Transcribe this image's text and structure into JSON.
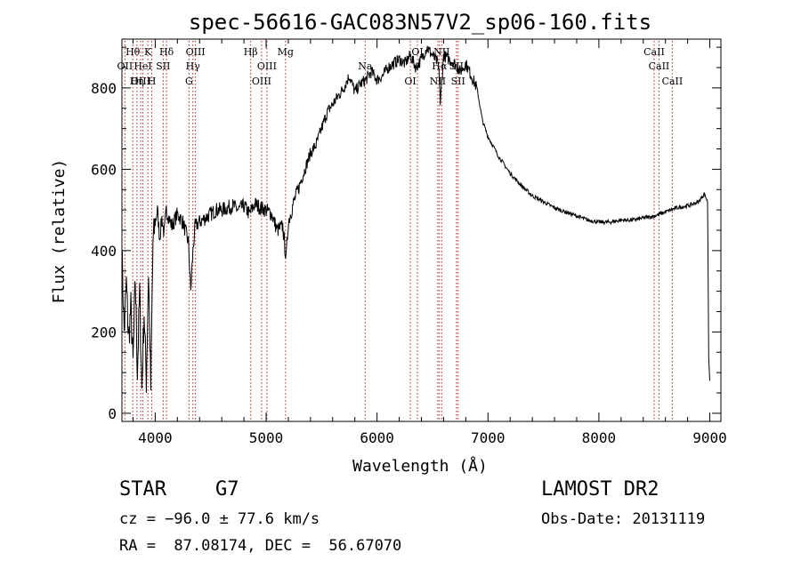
{
  "chart_data": {
    "type": "line",
    "title": "spec-56616-GAC083N57V2_sp06-160.fits",
    "xlabel": "Wavelength (Å)",
    "ylabel": "Flux (relative)",
    "xlim": [
      3700,
      9100
    ],
    "ylim": [
      -20,
      920
    ],
    "xticks": [
      4000,
      5000,
      6000,
      7000,
      8000,
      9000
    ],
    "yticks": [
      0,
      200,
      400,
      600,
      800
    ],
    "grid": false,
    "line_color": "#000000",
    "marker_color": "#b22222",
    "series": [
      {
        "x": [
          3700,
          3720,
          3740,
          3760,
          3780,
          3800,
          3820,
          3840,
          3860,
          3880,
          3900,
          3920,
          3940,
          3960,
          3980,
          4000,
          4020,
          4040,
          4060,
          4080,
          4100,
          4150,
          4200,
          4250,
          4300,
          4320,
          4340,
          4360,
          4400,
          4450,
          4500,
          4550,
          4600,
          4650,
          4700,
          4750,
          4800,
          4850,
          4900,
          4950,
          5000,
          5050,
          5100,
          5150,
          5180,
          5200,
          5250,
          5300,
          5350,
          5400,
          5450,
          5500,
          5550,
          5600,
          5650,
          5700,
          5750,
          5800,
          5850,
          5900,
          5950,
          6000,
          6050,
          6100,
          6150,
          6200,
          6250,
          6300,
          6350,
          6400,
          6450,
          6500,
          6550,
          6563,
          6570,
          6600,
          6650,
          6700,
          6750,
          6800,
          6850,
          6900,
          6950,
          7000,
          7100,
          7200,
          7300,
          7400,
          7500,
          7600,
          7700,
          7800,
          7900,
          8000,
          8100,
          8200,
          8300,
          8400,
          8500,
          8600,
          8700,
          8800,
          8900,
          8950,
          8980,
          8990,
          9000
        ],
        "y": [
          400,
          200,
          320,
          180,
          260,
          120,
          330,
          100,
          300,
          60,
          250,
          80,
          350,
          60,
          420,
          470,
          500,
          430,
          480,
          440,
          500,
          460,
          490,
          470,
          420,
          300,
          400,
          460,
          470,
          480,
          490,
          500,
          500,
          505,
          510,
          500,
          510,
          490,
          515,
          505,
          500,
          490,
          450,
          460,
          380,
          470,
          520,
          560,
          600,
          640,
          660,
          700,
          740,
          760,
          780,
          800,
          830,
          790,
          810,
          820,
          840,
          820,
          830,
          850,
          860,
          870,
          860,
          880,
          850,
          870,
          900,
          880,
          860,
          820,
          760,
          880,
          870,
          860,
          840,
          860,
          830,
          800,
          720,
          680,
          630,
          590,
          560,
          535,
          520,
          505,
          495,
          485,
          475,
          470,
          470,
          475,
          475,
          480,
          485,
          495,
          505,
          510,
          520,
          540,
          520,
          140,
          80
        ]
      }
    ],
    "lines": [
      {
        "label": "Hθ",
        "x": 3798
      },
      {
        "label": "OII",
        "x": 3727
      },
      {
        "label": "OIII",
        "x": 3869
      },
      {
        "label": "K",
        "x": 3934
      },
      {
        "label": "HeI",
        "x": 3889
      },
      {
        "label": "Hη",
        "x": 3835
      },
      {
        "label": "Hδ",
        "x": 4102
      },
      {
        "label": "SII",
        "x": 4072
      },
      {
        "label": "H",
        "x": 3969
      },
      {
        "label": "OIII",
        "x": 4363
      },
      {
        "label": "Hγ",
        "x": 4340
      },
      {
        "label": "G",
        "x": 4305
      },
      {
        "label": "Hβ",
        "x": 4861
      },
      {
        "label": "OIII",
        "x": 5007
      },
      {
        "label": "OIII",
        "x": 4959
      },
      {
        "label": "Mg",
        "x": 5175
      },
      {
        "label": "Na",
        "x": 5893
      },
      {
        "label": "OI",
        "x": 6300
      },
      {
        "label": "OI",
        "x": 6364
      },
      {
        "label": "Hα",
        "x": 6563
      },
      {
        "label": "NII",
        "x": 6548
      },
      {
        "label": "NII",
        "x": 6583
      },
      {
        "label": "SII",
        "x": 6716
      },
      {
        "label": "SII",
        "x": 6731
      },
      {
        "label": "CaII",
        "x": 8498
      },
      {
        "label": "CaII",
        "x": 8542
      },
      {
        "label": "CaII",
        "x": 8662
      }
    ]
  },
  "info": {
    "class": "STAR",
    "subclass": "G7",
    "survey": "LAMOST DR2",
    "cz": "cz = −96.0 ± 77.6 km/s",
    "obs_date": "Obs-Date: 20131119",
    "coords": "RA =  87.08174, DEC =  56.67070"
  }
}
